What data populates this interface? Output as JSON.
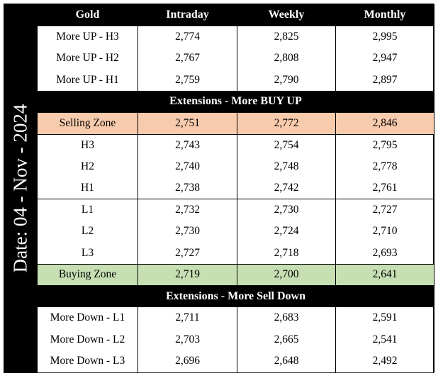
{
  "date_label": "Date: 04 - Nov - 2024",
  "headers": [
    "Gold",
    "Intraday",
    "Weekly",
    "Monthly"
  ],
  "groups": {
    "top": [
      {
        "label": "More UP - H3",
        "intraday": "2,774",
        "weekly": "2,825",
        "monthly": "2,995"
      },
      {
        "label": "More UP - H2",
        "intraday": "2,767",
        "weekly": "2,808",
        "monthly": "2,947"
      },
      {
        "label": "More UP - H1",
        "intraday": "2,759",
        "weekly": "2,790",
        "monthly": "2,897"
      }
    ],
    "section_buy_up": "Extensions - More BUY UP",
    "selling_zone": {
      "label": "Selling Zone",
      "intraday": "2,751",
      "weekly": "2,772",
      "monthly": "2,846"
    },
    "highs": [
      {
        "label": "H3",
        "intraday": "2,743",
        "weekly": "2,754",
        "monthly": "2,795"
      },
      {
        "label": "H2",
        "intraday": "2,740",
        "weekly": "2,748",
        "monthly": "2,778"
      },
      {
        "label": "H1",
        "intraday": "2,738",
        "weekly": "2,742",
        "monthly": "2,761"
      }
    ],
    "lows": [
      {
        "label": "L1",
        "intraday": "2,732",
        "weekly": "2,730",
        "monthly": "2,727"
      },
      {
        "label": "L2",
        "intraday": "2,730",
        "weekly": "2,724",
        "monthly": "2,710"
      },
      {
        "label": "L3",
        "intraday": "2,727",
        "weekly": "2,718",
        "monthly": "2,693"
      }
    ],
    "buying_zone": {
      "label": "Buying Zone",
      "intraday": "2,719",
      "weekly": "2,700",
      "monthly": "2,641"
    },
    "section_sell_down": "Extensions - More Sell Down",
    "bottom": [
      {
        "label": "More Down - L1",
        "intraday": "2,711",
        "weekly": "2,683",
        "monthly": "2,591"
      },
      {
        "label": "More Down - L2",
        "intraday": "2,703",
        "weekly": "2,665",
        "monthly": "2,541"
      },
      {
        "label": "More Down - L3",
        "intraday": "2,696",
        "weekly": "2,648",
        "monthly": "2,492"
      }
    ]
  },
  "colors": {
    "selling_zone": "#f8cbad",
    "buying_zone": "#c6e0b4",
    "header": "#000000"
  }
}
